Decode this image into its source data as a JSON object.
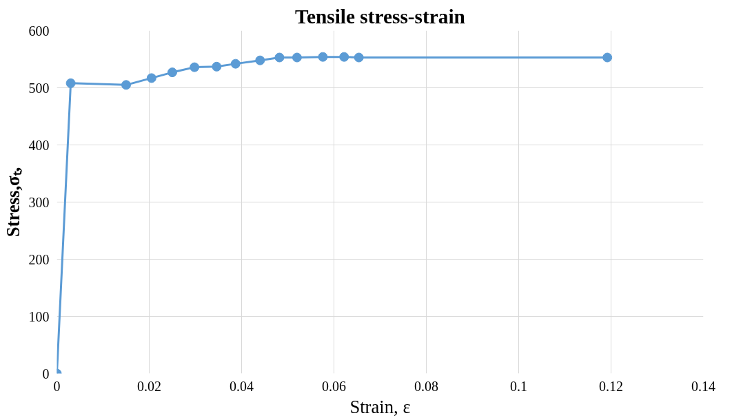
{
  "chart_data": {
    "type": "line",
    "title": "Tensile stress-strain",
    "xlabel": "Strain, ε",
    "ylabel": "Stress,σₜ,",
    "x": [
      0,
      0.003,
      0.015,
      0.0205,
      0.025,
      0.0298,
      0.0346,
      0.0387,
      0.044,
      0.0482,
      0.052,
      0.0576,
      0.0622,
      0.0654,
      0.1192
    ],
    "series": [
      {
        "color": "#5b9bd5",
        "values": [
          0,
          508,
          505,
          517,
          527,
          536,
          537,
          542,
          548,
          553,
          553,
          554,
          554,
          553,
          553
        ]
      }
    ],
    "xlim": [
      0,
      0.14
    ],
    "xticks": [
      0,
      0.02,
      0.04,
      0.06,
      0.08,
      {
        "value": 0.1,
        "label": "0.1"
      },
      0.12,
      0.14
    ],
    "ylim": [
      0,
      600
    ],
    "yticks": [
      0,
      100,
      200,
      300,
      400,
      500,
      600
    ],
    "grid": true,
    "marker": "circle",
    "line_style": "solid"
  }
}
